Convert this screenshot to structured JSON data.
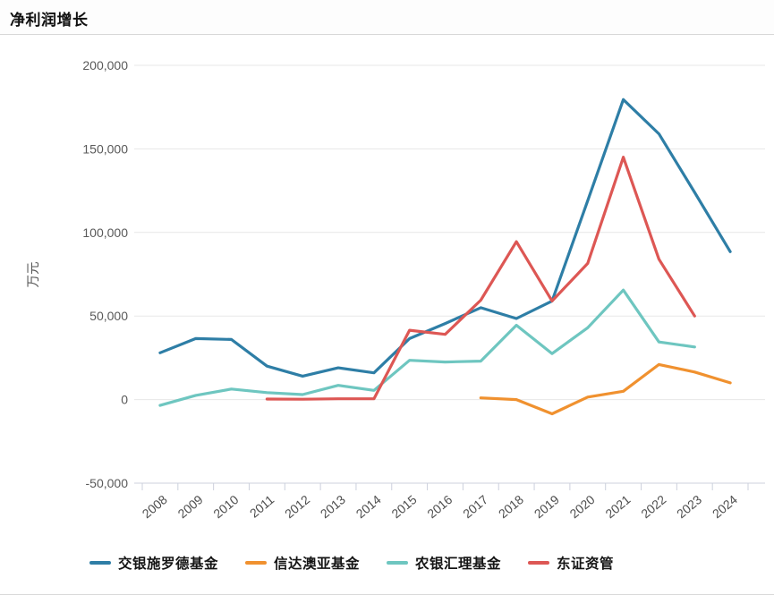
{
  "header": {
    "title": "净利润增长"
  },
  "chart_data": {
    "type": "line",
    "title": "净利润增长",
    "xlabel": "",
    "ylabel": "万元",
    "categories": [
      "2008",
      "2009",
      "2010",
      "2011",
      "2012",
      "2013",
      "2014",
      "2015",
      "2016",
      "2017",
      "2018",
      "2019",
      "2020",
      "2021",
      "2022",
      "2023",
      "2024"
    ],
    "yticks": [
      200000,
      150000,
      100000,
      50000,
      0,
      -50000
    ],
    "ylim": [
      -50000,
      200000
    ],
    "grid": true,
    "legend_position": "bottom",
    "series": [
      {
        "name": "交银施罗德基金",
        "color": "#2E7EA6",
        "values": [
          28000,
          36500,
          36000,
          20000,
          14000,
          19000,
          16000,
          36500,
          45500,
          55000,
          48500,
          59000,
          119000,
          179500,
          159000,
          124000,
          88500
        ]
      },
      {
        "name": "信达澳亚基金",
        "color": "#F0912F",
        "values": [
          null,
          null,
          null,
          null,
          null,
          null,
          null,
          null,
          null,
          1000,
          0,
          -8500,
          1500,
          5000,
          21000,
          16500,
          10000
        ]
      },
      {
        "name": "农银汇理基金",
        "color": "#6EC6C0",
        "values": [
          -3500,
          2500,
          6300,
          4200,
          3000,
          8500,
          5500,
          23500,
          22500,
          23000,
          44500,
          27500,
          43000,
          65500,
          34500,
          31500,
          null
        ]
      },
      {
        "name": "东证资管",
        "color": "#DD5754",
        "values": [
          null,
          null,
          null,
          300,
          200,
          500,
          500,
          41500,
          39000,
          59500,
          94500,
          59000,
          81500,
          145000,
          84000,
          50000,
          null
        ]
      }
    ],
    "axis_colors": {
      "grid": "#e7e7e7",
      "axis": "#ccd0dc",
      "tick_label": "#595959"
    }
  }
}
